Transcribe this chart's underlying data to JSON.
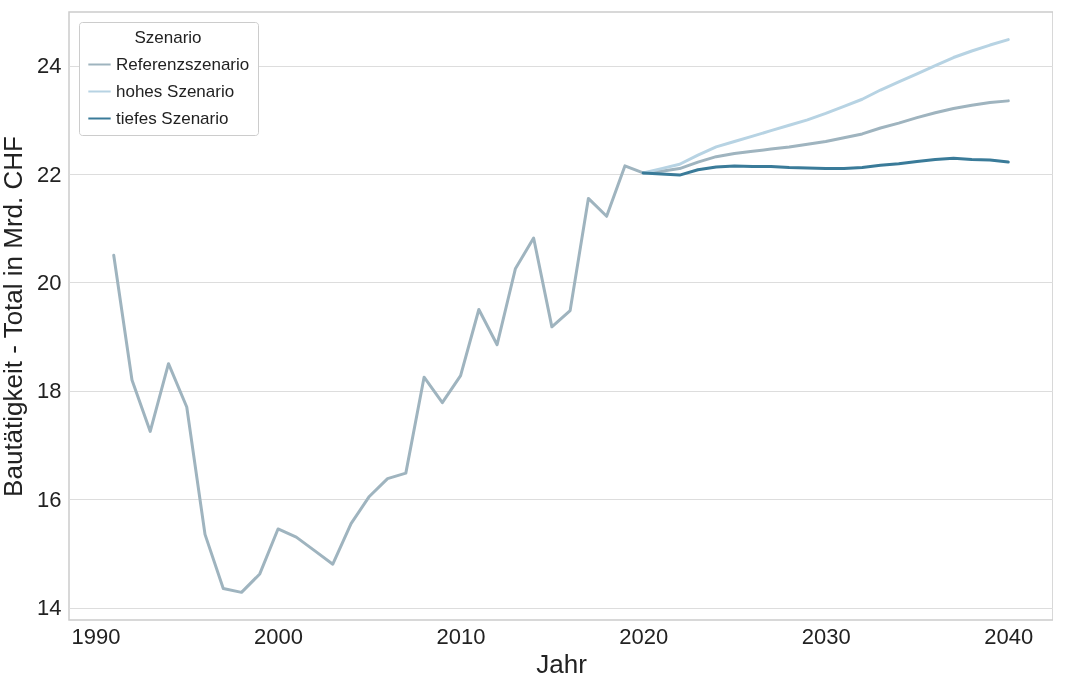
{
  "chart_data": {
    "type": "line",
    "xlabel": "Jahr",
    "ylabel": "Bautätigkeit - Total in Mrd. CHF",
    "legend_title": "Szenario",
    "legend": "top left",
    "grid": "y",
    "line_style": "solid",
    "xlim": [
      1988.55,
      2042.45
    ],
    "xticks": [
      1990,
      2000,
      2010,
      2020,
      2030,
      2040
    ],
    "ylim": [
      13.77,
      24.99
    ],
    "yticks": [
      14,
      16,
      18,
      20,
      22,
      24
    ],
    "series": [
      {
        "name": "Referenzszenario",
        "color": "#9fb4bf",
        "x": [
          1991,
          1992,
          1993,
          1994,
          1995,
          1996,
          1997,
          1998,
          1999,
          2000,
          2001,
          2002,
          2003,
          2004,
          2005,
          2006,
          2007,
          2008,
          2009,
          2010,
          2011,
          2012,
          2013,
          2014,
          2015,
          2016,
          2017,
          2018,
          2019,
          2020,
          2021,
          2022,
          2023,
          2024,
          2025,
          2026,
          2027,
          2028,
          2029,
          2030,
          2031,
          2032,
          2033,
          2034,
          2035,
          2036,
          2037,
          2038,
          2039,
          2040
        ],
        "values": [
          20.5,
          18.2,
          17.25,
          18.5,
          17.7,
          15.35,
          14.35,
          14.28,
          14.62,
          15.45,
          15.3,
          15.05,
          14.8,
          15.55,
          16.05,
          16.38,
          16.48,
          18.25,
          17.78,
          18.28,
          19.5,
          18.85,
          20.25,
          20.82,
          19.18,
          19.48,
          21.55,
          21.22,
          22.15,
          22.02,
          22.05,
          22.1,
          22.22,
          22.32,
          22.38,
          22.42,
          22.46,
          22.5,
          22.55,
          22.6,
          22.67,
          22.74,
          22.85,
          22.94,
          23.04,
          23.13,
          23.21,
          23.27,
          23.32,
          23.35
        ]
      },
      {
        "name": "hohes Szenario",
        "color": "#b7d3e3",
        "x": [
          2020,
          2021,
          2022,
          2023,
          2024,
          2025,
          2026,
          2027,
          2028,
          2029,
          2030,
          2031,
          2032,
          2033,
          2034,
          2035,
          2036,
          2037,
          2038,
          2039,
          2040
        ],
        "values": [
          22.02,
          22.1,
          22.18,
          22.35,
          22.5,
          22.6,
          22.7,
          22.8,
          22.9,
          23.0,
          23.12,
          23.25,
          23.38,
          23.55,
          23.7,
          23.85,
          24.0,
          24.15,
          24.27,
          24.38,
          24.48
        ]
      },
      {
        "name": "tiefes Szenario",
        "color": "#3a7b99",
        "x": [
          2020,
          2021,
          2022,
          2023,
          2024,
          2025,
          2026,
          2027,
          2028,
          2029,
          2030,
          2031,
          2032,
          2033,
          2034,
          2035,
          2036,
          2037,
          2038,
          2039,
          2040
        ],
        "values": [
          22.02,
          22.0,
          21.98,
          22.08,
          22.13,
          22.15,
          22.14,
          22.14,
          22.12,
          22.11,
          22.1,
          22.1,
          22.12,
          22.16,
          22.19,
          22.23,
          22.27,
          22.29,
          22.27,
          22.26,
          22.22
        ]
      }
    ]
  }
}
